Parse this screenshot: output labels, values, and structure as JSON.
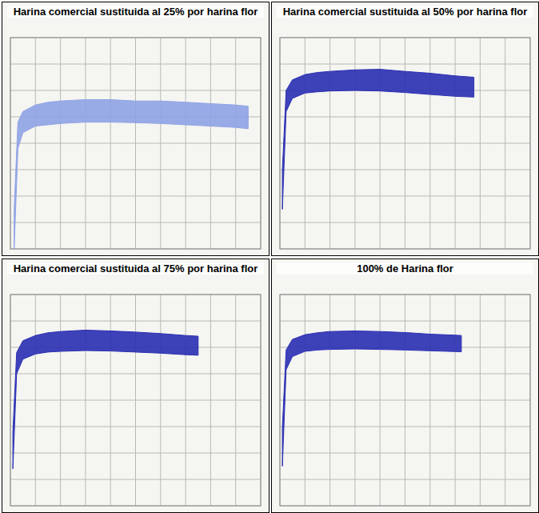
{
  "chart_data": [
    {
      "type": "area",
      "title": "Harina comercial sustituida al 25% por harina flor",
      "x": [
        0.3,
        0.6,
        1,
        2,
        3,
        4,
        6,
        8,
        10,
        12,
        14,
        16,
        18,
        19
      ],
      "values": [
        150,
        480,
        520,
        545,
        555,
        560,
        565,
        565,
        560,
        560,
        555,
        550,
        545,
        540
      ],
      "low": [
        0,
        380,
        440,
        465,
        470,
        475,
        480,
        480,
        478,
        475,
        470,
        465,
        460,
        455
      ],
      "color": "#8fa3e6",
      "xlim": [
        0,
        20
      ],
      "ylim": [
        0,
        800
      ],
      "xticks": [
        0,
        2,
        4,
        6,
        8,
        10,
        12,
        14,
        16,
        18,
        20
      ],
      "yticks": [
        0,
        100,
        200,
        300,
        400,
        500,
        600,
        700,
        800
      ],
      "grid": true,
      "tick_labels": false
    },
    {
      "type": "area",
      "title": "Harina comercial sustituida al 50% por harina flor",
      "x": [
        0.2,
        0.5,
        1,
        2,
        3,
        4,
        6,
        8,
        10,
        12,
        14,
        15.5
      ],
      "values": [
        300,
        600,
        640,
        660,
        668,
        672,
        678,
        680,
        672,
        665,
        655,
        650
      ],
      "low": [
        150,
        520,
        570,
        590,
        595,
        598,
        600,
        598,
        592,
        585,
        578,
        575
      ],
      "color": "#2a2fb3",
      "xlim": [
        0,
        20
      ],
      "ylim": [
        0,
        800
      ],
      "xticks": [
        0,
        2,
        4,
        6,
        8,
        10,
        12,
        14,
        16,
        18,
        20
      ],
      "yticks": [
        0,
        100,
        200,
        300,
        400,
        500,
        600,
        700,
        800
      ],
      "grid": true,
      "tick_labels": false
    },
    {
      "type": "area",
      "title": "Harina comercial sustituida al 75% por harina flor",
      "x": [
        0.2,
        0.5,
        1,
        2,
        3,
        4,
        6,
        8,
        10,
        12,
        14,
        15
      ],
      "values": [
        280,
        580,
        625,
        645,
        655,
        660,
        665,
        662,
        658,
        652,
        645,
        642
      ],
      "low": [
        140,
        500,
        555,
        575,
        582,
        585,
        588,
        586,
        582,
        578,
        572,
        570
      ],
      "color": "#2a2fb3",
      "xlim": [
        0,
        20
      ],
      "ylim": [
        0,
        800
      ],
      "xticks": [
        0,
        2,
        4,
        6,
        8,
        10,
        12,
        14,
        16,
        18,
        20
      ],
      "yticks": [
        0,
        100,
        200,
        300,
        400,
        500,
        600,
        700,
        800
      ],
      "grid": true,
      "tick_labels": false
    },
    {
      "type": "area",
      "title": "100% de Harina flor",
      "x": [
        0.2,
        0.5,
        1,
        2,
        3,
        4,
        6,
        8,
        10,
        12,
        14,
        14.5
      ],
      "values": [
        300,
        590,
        630,
        648,
        655,
        660,
        662,
        660,
        656,
        650,
        646,
        645
      ],
      "low": [
        150,
        515,
        565,
        585,
        590,
        592,
        594,
        592,
        590,
        587,
        584,
        583
      ],
      "color": "#2a2fb3",
      "xlim": [
        0,
        20
      ],
      "ylim": [
        0,
        800
      ],
      "xticks": [
        0,
        2,
        4,
        6,
        8,
        10,
        12,
        14,
        16,
        18,
        20
      ],
      "yticks": [
        0,
        100,
        200,
        300,
        400,
        500,
        600,
        700,
        800
      ],
      "grid": true,
      "tick_labels": false
    }
  ]
}
